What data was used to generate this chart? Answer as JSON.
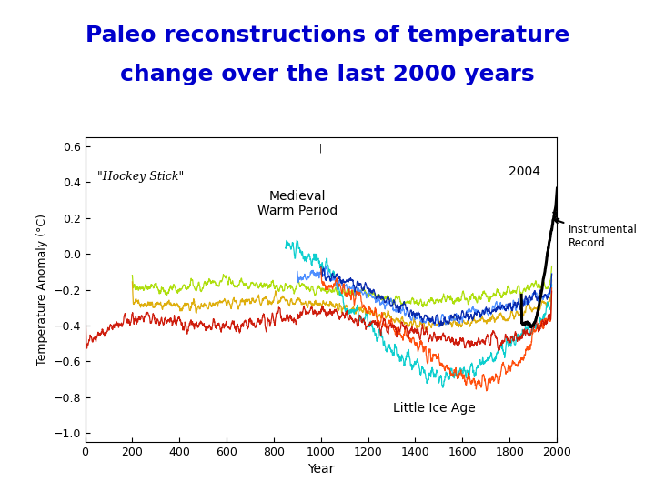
{
  "title_line1": "Paleo reconstructions of temperature",
  "title_line2": "change over the last 2000 years",
  "title_color": "#0000CC",
  "title_fontsize": 18,
  "xlabel": "Year",
  "ylabel": "Temperature Anomaly (°C)",
  "xlim": [
    0,
    2000
  ],
  "ylim": [
    -1.05,
    0.65
  ],
  "xticks": [
    0,
    200,
    400,
    600,
    800,
    1000,
    1200,
    1400,
    1600,
    1800,
    2000
  ],
  "yticks": [
    -1.0,
    -0.8,
    -0.6,
    -0.4,
    -0.2,
    0,
    0.2,
    0.4,
    0.6
  ],
  "hockey_stick_label": "\"Hockey Stick\"",
  "medieval_label": "Medieval\nWarm Period",
  "little_ice_age_label": "Little Ice Age",
  "year_2004_label": "2004",
  "instrumental_label": "Instrumental\nRecord",
  "background_color": "#ffffff",
  "plot_bg_color": "#ffffff"
}
